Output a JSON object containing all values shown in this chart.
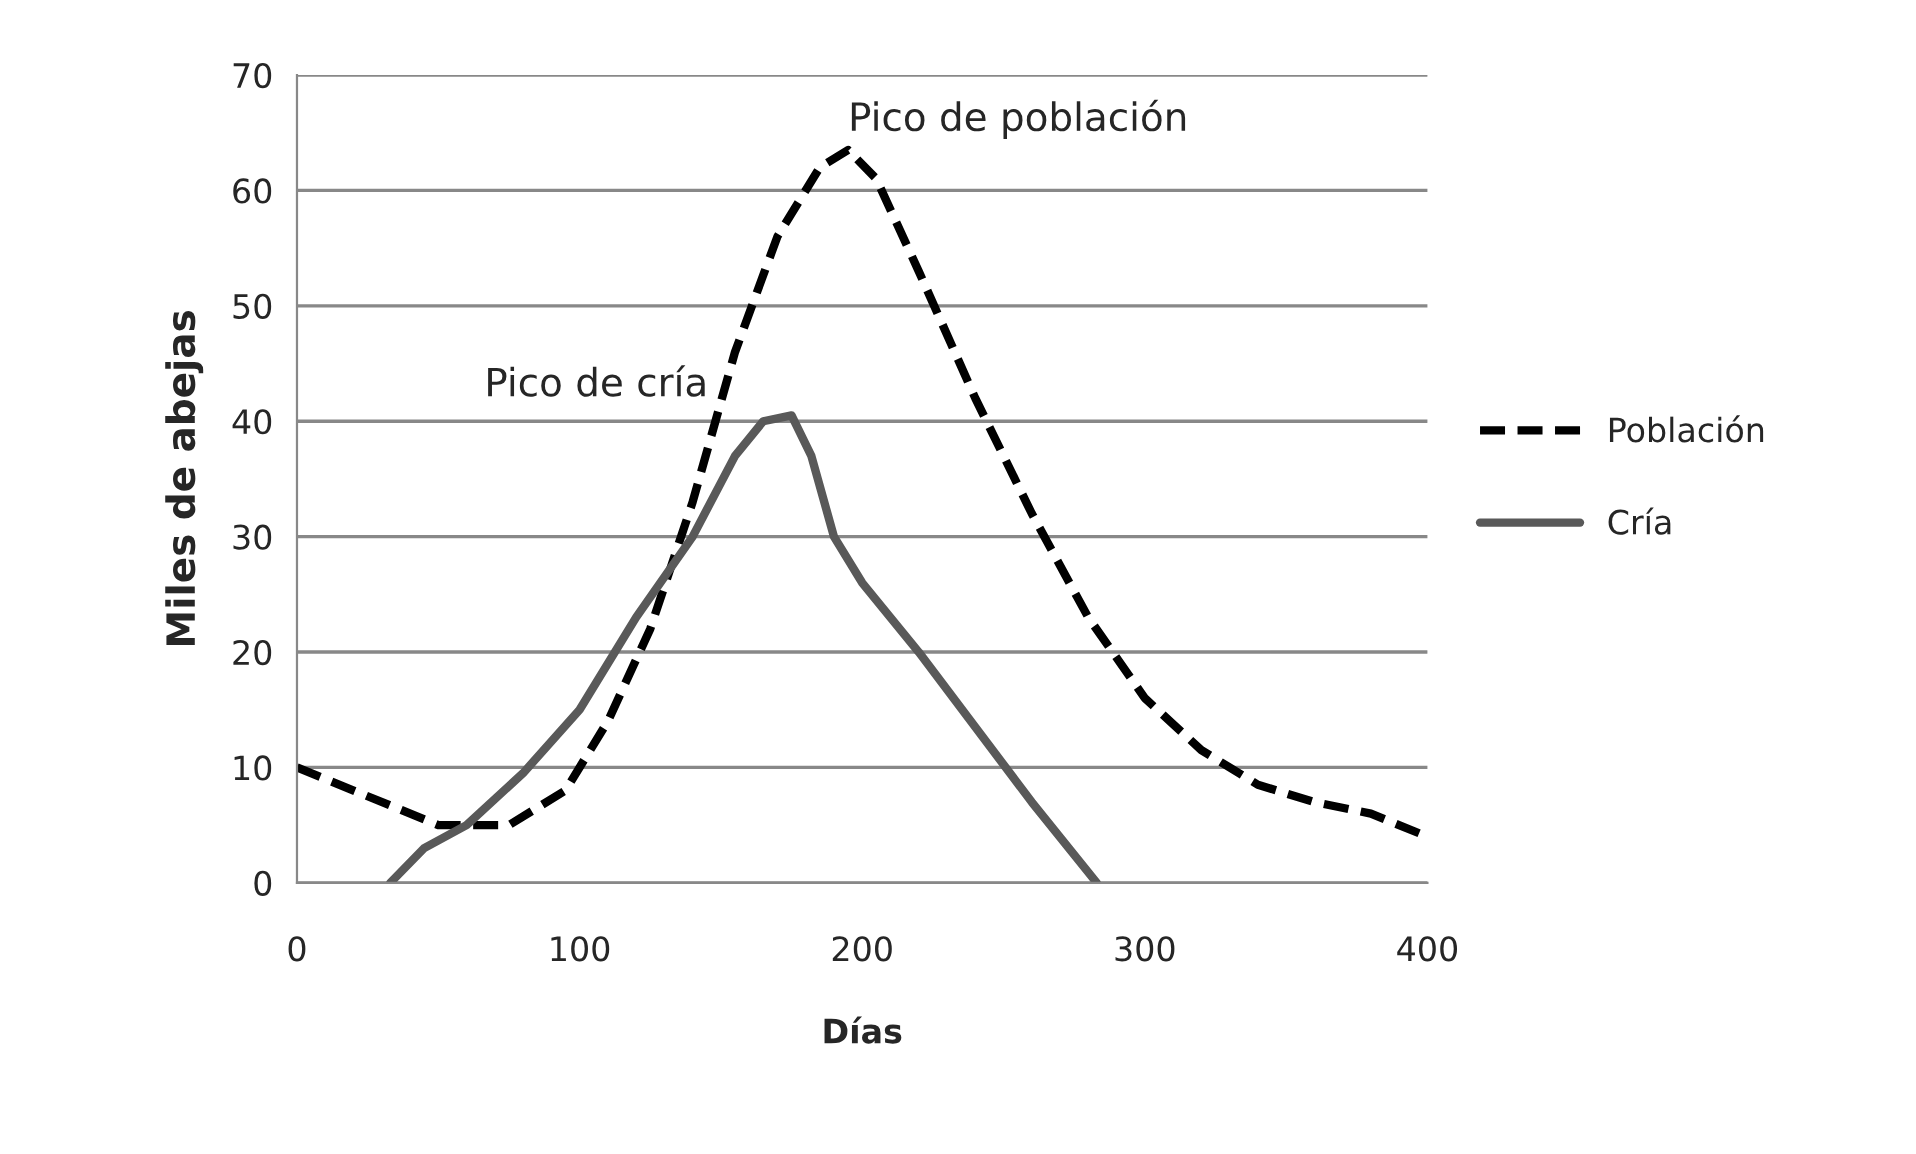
{
  "chart_data": {
    "type": "line",
    "xlabel": "Días",
    "ylabel": "Miles de abejas",
    "xlim": [
      0,
      400
    ],
    "xticks": [
      0,
      100,
      200,
      300,
      400
    ],
    "ylim": [
      0,
      70
    ],
    "yticks": [
      0,
      10,
      20,
      30,
      40,
      50,
      60,
      70
    ],
    "grid": "y",
    "legend": "right",
    "marker": "none",
    "series": [
      {
        "name": "Población",
        "color": "#000000",
        "line_style": "dashed",
        "x": [
          0,
          25,
          50,
          75,
          95,
          110,
          125,
          140,
          155,
          170,
          185,
          195,
          205,
          220,
          240,
          260,
          280,
          300,
          320,
          340,
          360,
          380,
          400
        ],
        "values": [
          10,
          7.5,
          5,
          5,
          8,
          14,
          22,
          33,
          46,
          56,
          62,
          63.5,
          61,
          53,
          42,
          32,
          23,
          16,
          11.5,
          8.5,
          7,
          6,
          4
        ]
      },
      {
        "name": "Cría",
        "color": "#595959",
        "line_style": "solid",
        "x": [
          33,
          45,
          60,
          80,
          100,
          120,
          140,
          155,
          165,
          175,
          182,
          190,
          200,
          220,
          240,
          260,
          283
        ],
        "values": [
          0,
          3,
          5,
          9.5,
          15,
          23,
          30,
          37,
          40,
          40.5,
          37,
          30,
          26,
          20,
          13.5,
          7,
          0
        ]
      }
    ],
    "annotations": [
      {
        "text": "Pico de población",
        "x": 195,
        "y": 63.5
      },
      {
        "text": "Pico de cría",
        "x": 175,
        "y": 40.5
      }
    ]
  }
}
